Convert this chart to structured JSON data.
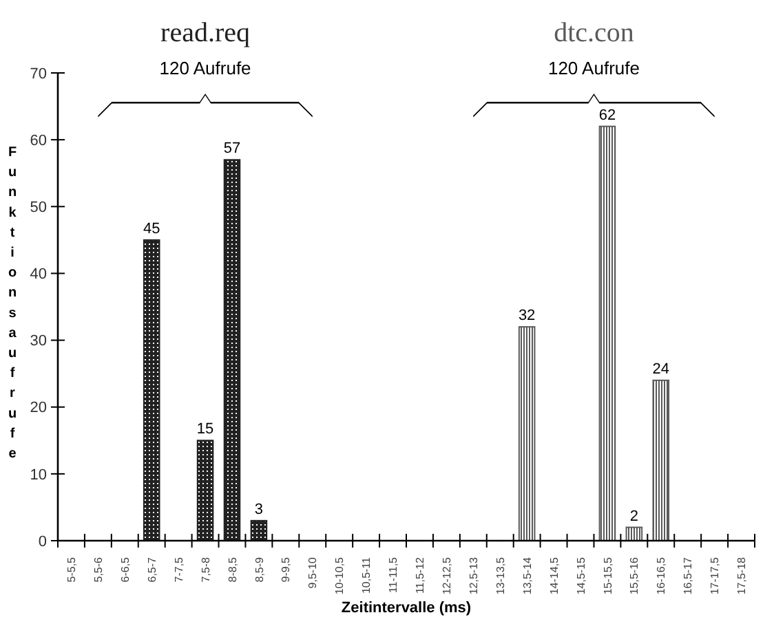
{
  "chart_data": {
    "type": "bar",
    "xlabel": "Zeitintervalle (ms)",
    "ylabel": "Funktionsaufrufe",
    "categories": [
      "5-5,5",
      "5,5-6",
      "6-6,5",
      "6,5-7",
      "7-7,5",
      "7,5-8",
      "8-8,5",
      "8,5-9",
      "9-9,5",
      "9,5-10",
      "10-10,5",
      "10,5-11",
      "11-11,5",
      "11,5-12",
      "12-12,5",
      "12,5-13",
      "13-13,5",
      "13,5-14",
      "14-14,5",
      "14,5-15",
      "15-15,5",
      "15,5-16",
      "16-16,5",
      "16,5-17",
      "17-17,5",
      "17,5-18"
    ],
    "series": [
      {
        "name": "read.req",
        "color": "#222222",
        "values": [
          null,
          null,
          null,
          45,
          null,
          15,
          57,
          3,
          null,
          null,
          null,
          null,
          null,
          null,
          null,
          null,
          null,
          null,
          null,
          null,
          null,
          null,
          null,
          null,
          null,
          null
        ]
      },
      {
        "name": "dtc.con",
        "color": "#5a5a5a",
        "values": [
          null,
          null,
          null,
          null,
          null,
          null,
          null,
          null,
          null,
          null,
          null,
          null,
          null,
          null,
          null,
          null,
          null,
          32,
          null,
          null,
          62,
          2,
          24,
          null,
          null,
          null
        ]
      }
    ],
    "annotations": [
      "120 Aufrufe",
      "120 Aufrufe"
    ],
    "ylim": [
      0,
      70
    ],
    "yticks": [
      0,
      10,
      20,
      30,
      40,
      50,
      60,
      70
    ],
    "data_labels": true
  }
}
